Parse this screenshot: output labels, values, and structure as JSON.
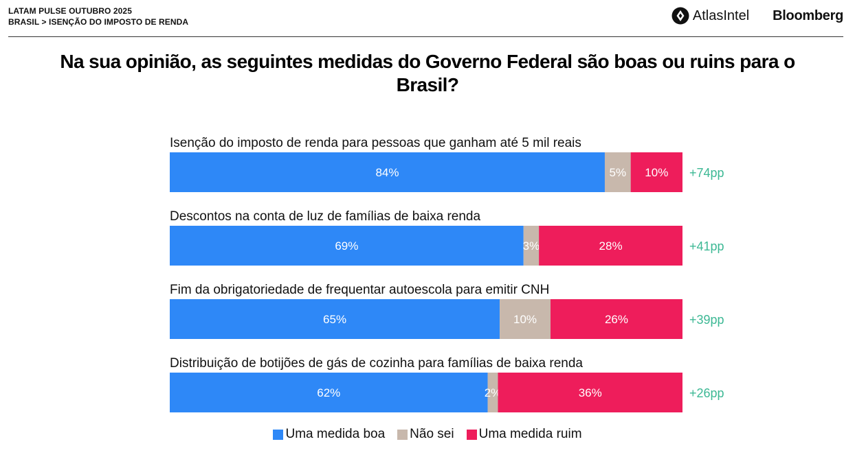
{
  "header": {
    "report": "LATAM PULSE OUTUBRO 2025",
    "breadcrumb": "BRASIL > ISENÇÃO DO IMPOSTO DE RENDA",
    "brand_atlas": "AtlasIntel",
    "brand_bloomberg": "Bloomberg"
  },
  "title": "Na sua opinião, as seguintes medidas do Governo Federal são boas ou ruins para o Brasil?",
  "legend": {
    "good": "Uma medida boa",
    "unsure": "Não sei",
    "bad": "Uma medida ruim"
  },
  "colors": {
    "good": "#2e88f7",
    "unsure": "#c8b8ac",
    "bad": "#ee1d5b",
    "net": "#3cb894"
  },
  "chart_data": {
    "type": "bar",
    "orientation": "horizontal-stacked-100",
    "categories": [
      "Isenção do imposto de renda para pessoas que ganham até 5 mil reais",
      "Descontos na conta de luz de famílias de baixa renda",
      "Fim da obrigatoriedade de frequentar autoescola para emitir CNH",
      "Distribuição de botijões de gás de cozinha para famílias de baixa renda"
    ],
    "series": [
      {
        "name": "Uma medida boa",
        "values": [
          84,
          69,
          65,
          62
        ],
        "labels": [
          "84%",
          "69%",
          "65%",
          "62%"
        ]
      },
      {
        "name": "Não sei",
        "values": [
          5,
          3,
          10,
          2
        ],
        "labels": [
          "5%",
          "3%",
          "10%",
          "2%"
        ]
      },
      {
        "name": "Uma medida ruim",
        "values": [
          10,
          28,
          26,
          36
        ],
        "labels": [
          "10%",
          "28%",
          "26%",
          "36%"
        ]
      }
    ],
    "net": [
      "+74pp",
      "+41pp",
      "+39pp",
      "+26pp"
    ],
    "xlim": [
      0,
      100
    ]
  }
}
